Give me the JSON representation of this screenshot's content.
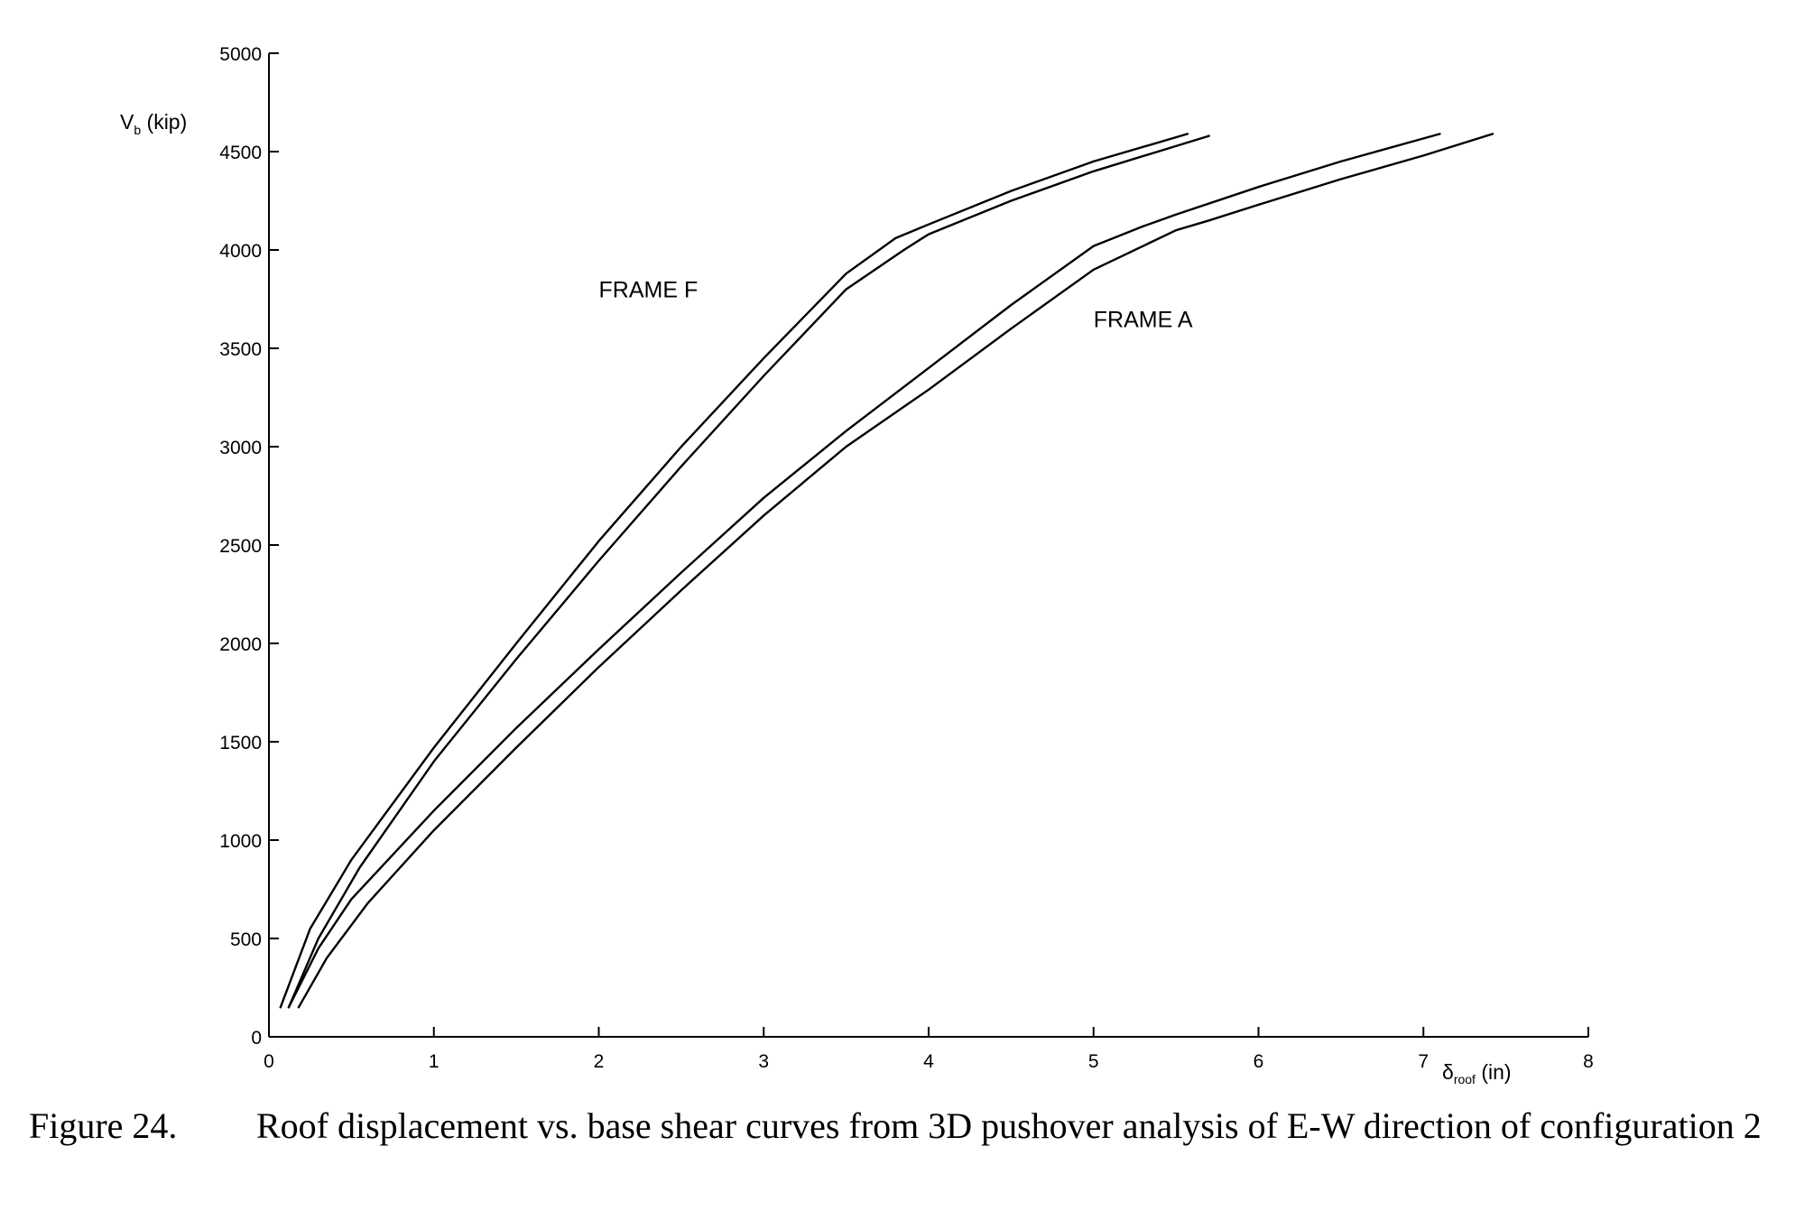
{
  "chart_data": {
    "type": "line",
    "xlabel": "δ",
    "xlabel_sub": "roof",
    "xlabel_unit": "(in)",
    "ylabel": "V",
    "ylabel_sub": "b",
    "ylabel_unit": "(kip)",
    "xlim": [
      0,
      8
    ],
    "ylim": [
      0,
      5000
    ],
    "x_ticks": [
      0,
      1,
      2,
      3,
      4,
      5,
      6,
      7,
      8
    ],
    "y_ticks": [
      0,
      500,
      1000,
      1500,
      2000,
      2500,
      3000,
      3500,
      4000,
      4500,
      5000
    ],
    "grid": false,
    "annotations": [
      {
        "text": "FRAME F",
        "x": 2.0,
        "y": 3800
      },
      {
        "text": "FRAME A",
        "x": 5.0,
        "y": 3650
      }
    ],
    "series": [
      {
        "group": "FRAME F",
        "x": [
          0.07,
          0.25,
          0.5,
          1.0,
          1.5,
          2.0,
          2.5,
          3.0,
          3.5,
          3.8,
          4.0,
          4.5,
          5.0,
          5.57
        ],
        "y": [
          150,
          550,
          900,
          1470,
          2000,
          2520,
          3000,
          3450,
          3880,
          4060,
          4130,
          4300,
          4450,
          4590
        ]
      },
      {
        "group": "FRAME F",
        "x": [
          0.12,
          0.3,
          0.55,
          1.0,
          1.5,
          2.0,
          2.5,
          3.0,
          3.5,
          3.85,
          4.0,
          4.5,
          5.0,
          5.7
        ],
        "y": [
          150,
          500,
          860,
          1400,
          1920,
          2420,
          2900,
          3360,
          3800,
          4000,
          4080,
          4250,
          4400,
          4580
        ]
      },
      {
        "group": "FRAME A",
        "x": [
          0.12,
          0.3,
          0.5,
          1.0,
          1.5,
          2.0,
          2.5,
          3.0,
          3.5,
          4.0,
          4.5,
          5.0,
          5.3,
          5.5,
          6.0,
          6.5,
          7.1
        ],
        "y": [
          150,
          450,
          700,
          1150,
          1570,
          1970,
          2360,
          2740,
          3080,
          3400,
          3720,
          4020,
          4120,
          4180,
          4320,
          4450,
          4590
        ]
      },
      {
        "group": "FRAME A",
        "x": [
          0.18,
          0.35,
          0.6,
          1.0,
          1.5,
          2.0,
          2.5,
          3.0,
          3.5,
          4.0,
          4.5,
          5.0,
          5.5,
          5.7,
          6.0,
          6.5,
          7.0,
          7.42
        ],
        "y": [
          150,
          400,
          680,
          1050,
          1470,
          1880,
          2270,
          2650,
          3000,
          3290,
          3600,
          3900,
          4100,
          4150,
          4230,
          4360,
          4480,
          4590
        ]
      }
    ]
  },
  "caption": {
    "number": "Figure 24.",
    "text": "Roof displacement vs. base shear curves from 3D pushover analysis of E-W direction of configuration 2"
  }
}
